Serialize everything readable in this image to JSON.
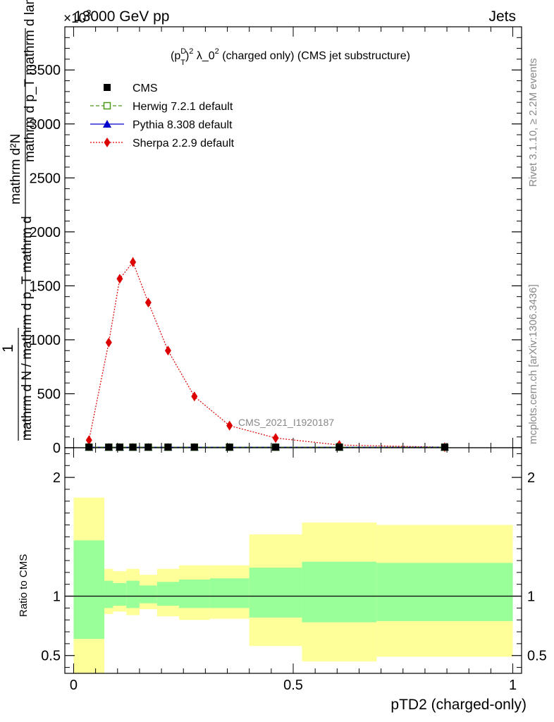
{
  "header": {
    "left": "13000 GeV pp",
    "right": "Jets",
    "exponent": "×10",
    "exponent_power": "3"
  },
  "side_labels": {
    "rivet": "Rivet 3.1.10, ≥ 2.2M events",
    "mcplots": "mcplots.cern.ch [arXiv:1306.3436]"
  },
  "chart_data": [
    {
      "type": "line",
      "title_parts": {
        "p": "(p",
        "sup_d": "D",
        "sub_t": "T",
        "close": ")",
        "sup_2": "2",
        "rest": " λ_0",
        "sup_3": "2",
        "tail": " (charged only) (CMS jet substructure)"
      },
      "ylabel_top": "mathrm d²N",
      "ylabel_top_right": "mathrm d p_T mathrm d lambda",
      "ylabel_mid": "1",
      "ylabel_bottom": "mathrm d N / mathrm d p_T mathrm d",
      "ylim": [
        0,
        3900
      ],
      "xlim": [
        -0.02,
        1.02
      ],
      "yticks": [
        0,
        500,
        1000,
        1500,
        2000,
        2500,
        3000,
        3500
      ],
      "ytick_labels": [
        "0",
        "500",
        "1000",
        "1500",
        "2000",
        "2500",
        "3000",
        "3500"
      ],
      "watermark": "CMS_2021_I1920187",
      "legend": [
        {
          "name": "CMS",
          "color": "#000000",
          "marker": "square"
        },
        {
          "name": "Herwig 7.2.1 default",
          "color": "#4a9a1a",
          "marker": "open-square",
          "dash": "dashed"
        },
        {
          "name": "Pythia 8.308 default",
          "color": "#0000cc",
          "marker": "triangle",
          "dash": "solid"
        },
        {
          "name": "Sherpa 2.2.9 default",
          "color": "#dd0000",
          "marker": "diamond",
          "dash": "dotted"
        }
      ],
      "legend_placement": "top-left",
      "x": [
        0.035,
        0.08,
        0.105,
        0.135,
        0.17,
        0.215,
        0.275,
        0.355,
        0.46,
        0.605,
        0.845
      ],
      "series": [
        {
          "name": "CMS",
          "values": [
            5,
            5,
            5,
            5,
            5,
            5,
            5,
            5,
            5,
            5,
            5
          ]
        },
        {
          "name": "Herwig 7.2.1 default",
          "values": [
            5,
            5,
            5,
            5,
            5,
            5,
            5,
            5,
            5,
            5,
            5
          ]
        },
        {
          "name": "Pythia 8.308 default",
          "values": [
            5,
            5,
            5,
            5,
            5,
            5,
            5,
            5,
            5,
            5,
            5
          ]
        },
        {
          "name": "Sherpa 2.2.9 default",
          "values": [
            70,
            975,
            1565,
            1720,
            1345,
            900,
            475,
            205,
            90,
            25,
            5
          ],
          "errors": [
            20,
            30,
            40,
            45,
            35,
            25,
            18,
            12,
            8,
            5,
            3
          ]
        }
      ]
    },
    {
      "type": "area",
      "ylabel": "Ratio to CMS",
      "xlabel": "pTD2 (charged-only)",
      "ylim": [
        0.35,
        2.25
      ],
      "yticks": [
        0.5,
        1,
        2
      ],
      "ytick_labels": [
        "0.5",
        "1",
        "2"
      ],
      "xticks": [
        0,
        0.5,
        1
      ],
      "xtick_labels": [
        "0",
        "0.5",
        "1"
      ],
      "reference_line": 1,
      "bins": [
        {
          "lo": 0.0,
          "hi": 0.07,
          "inner": [
            0.64,
            1.47
          ],
          "outer": [
            0.35,
            1.83
          ]
        },
        {
          "lo": 0.07,
          "hi": 0.09,
          "inner": [
            0.9,
            1.13
          ],
          "outer": [
            0.85,
            1.23
          ]
        },
        {
          "lo": 0.09,
          "hi": 0.12,
          "inner": [
            0.92,
            1.11
          ],
          "outer": [
            0.87,
            1.21
          ]
        },
        {
          "lo": 0.12,
          "hi": 0.15,
          "inner": [
            0.9,
            1.13
          ],
          "outer": [
            0.84,
            1.23
          ]
        },
        {
          "lo": 0.15,
          "hi": 0.19,
          "inner": [
            0.94,
            1.09
          ],
          "outer": [
            0.89,
            1.18
          ]
        },
        {
          "lo": 0.19,
          "hi": 0.24,
          "inner": [
            0.92,
            1.12
          ],
          "outer": [
            0.83,
            1.23
          ]
        },
        {
          "lo": 0.24,
          "hi": 0.31,
          "inner": [
            0.9,
            1.14
          ],
          "outer": [
            0.8,
            1.26
          ]
        },
        {
          "lo": 0.31,
          "hi": 0.4,
          "inner": [
            0.9,
            1.15
          ],
          "outer": [
            0.81,
            1.26
          ]
        },
        {
          "lo": 0.4,
          "hi": 0.52,
          "inner": [
            0.82,
            1.24
          ],
          "outer": [
            0.58,
            1.52
          ]
        },
        {
          "lo": 0.52,
          "hi": 0.69,
          "inner": [
            0.78,
            1.29
          ],
          "outer": [
            0.45,
            1.62
          ]
        },
        {
          "lo": 0.69,
          "hi": 1.0,
          "inner": [
            0.79,
            1.28
          ],
          "outer": [
            0.49,
            1.6
          ]
        }
      ]
    }
  ]
}
